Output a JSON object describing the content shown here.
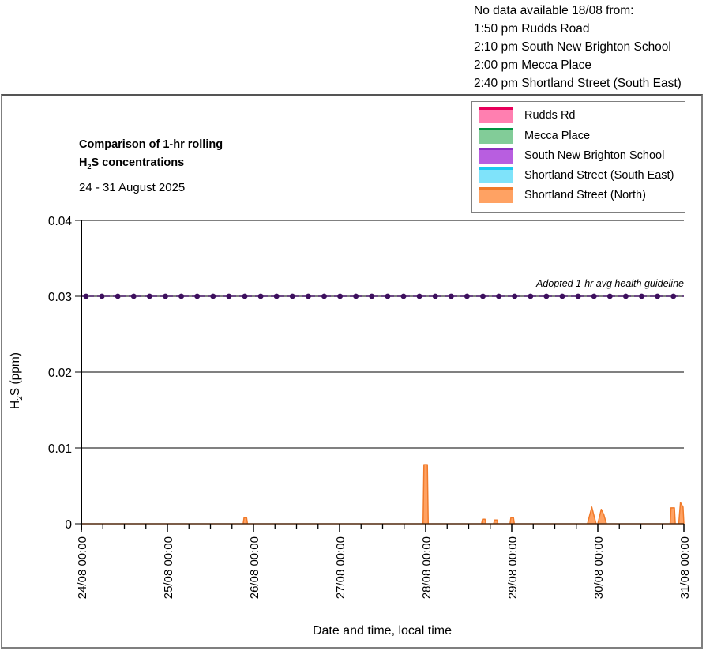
{
  "note": {
    "lines": [
      "No data available 18/08 from:",
      "1:50 pm Rudds Road",
      "2:10 pm South New Brighton School",
      "2:00 pm Mecca Place",
      "2:40 pm Shortland Street (South East)"
    ]
  },
  "chart_data": {
    "type": "area",
    "title_line1": "Comparison of 1-hr rolling",
    "title_line2_prefix": "H",
    "title_line2_sub": "2",
    "title_line2_suffix": "S concentrations",
    "subtitle": "24 - 31 August 2025",
    "xlabel": "Date and time, local time",
    "ylabel_prefix": "H",
    "ylabel_sub": "2",
    "ylabel_suffix": "S (ppm)",
    "ylim": [
      0,
      0.04
    ],
    "yticks": [
      0,
      0.01,
      0.02,
      0.03,
      0.04
    ],
    "ytick_labels": [
      "0",
      "0.01",
      "0.02",
      "0.03",
      "0.04"
    ],
    "xlim_days": [
      0,
      7
    ],
    "xticks_days": [
      0,
      1,
      2,
      3,
      4,
      5,
      6,
      7
    ],
    "xtick_labels": [
      "24/08 00:00",
      "25/08 00:00",
      "26/08 00:00",
      "27/08 00:00",
      "28/08 00:00",
      "29/08 00:00",
      "30/08 00:00",
      "31/08 00:00"
    ],
    "minor_ticks_per_day": 4,
    "grid": true,
    "legend_position": "top-right",
    "guideline": {
      "label": "Adopted 1-hr avg health guideline",
      "value": 0.03,
      "color": "#3d0f5e"
    },
    "series": [
      {
        "name": "Rudds Rd",
        "fill": "#ff7fb0",
        "line": "#e8005a",
        "points": []
      },
      {
        "name": "Mecca Place",
        "fill": "#82cc98",
        "line": "#00923f",
        "points": []
      },
      {
        "name": "South New Brighton School",
        "fill": "#b85ee0",
        "line": "#8a2fc0",
        "points": []
      },
      {
        "name": "Shortland Street (South East)",
        "fill": "#7fe3fa",
        "line": "#1cc8f0",
        "points": []
      },
      {
        "name": "Shortland Street (North)",
        "fill": "#ffa263",
        "line": "#f07a2a",
        "points": [
          [
            0,
            0
          ],
          [
            1.88,
            0
          ],
          [
            1.89,
            0.0008
          ],
          [
            1.92,
            0.0008
          ],
          [
            1.93,
            0
          ],
          [
            3.97,
            0
          ],
          [
            3.98,
            0.0078
          ],
          [
            4.02,
            0.0078
          ],
          [
            4.03,
            0
          ],
          [
            4.65,
            0
          ],
          [
            4.66,
            0.0006
          ],
          [
            4.69,
            0.0006
          ],
          [
            4.7,
            0
          ],
          [
            4.79,
            0
          ],
          [
            4.8,
            0.0005
          ],
          [
            4.83,
            0.0005
          ],
          [
            4.84,
            0
          ],
          [
            4.98,
            0
          ],
          [
            4.99,
            0.0008
          ],
          [
            5.02,
            0.0008
          ],
          [
            5.03,
            0
          ],
          [
            5.88,
            0
          ],
          [
            5.93,
            0.0022
          ],
          [
            5.98,
            0
          ],
          [
            6.0,
            0
          ],
          [
            6.04,
            0.0019
          ],
          [
            6.07,
            0.0012
          ],
          [
            6.1,
            0
          ],
          [
            6.84,
            0
          ],
          [
            6.85,
            0.0021
          ],
          [
            6.89,
            0.0021
          ],
          [
            6.9,
            0
          ],
          [
            6.94,
            0
          ],
          [
            6.96,
            0.0028
          ],
          [
            6.99,
            0.0022
          ],
          [
            7.0,
            0
          ]
        ]
      }
    ]
  }
}
